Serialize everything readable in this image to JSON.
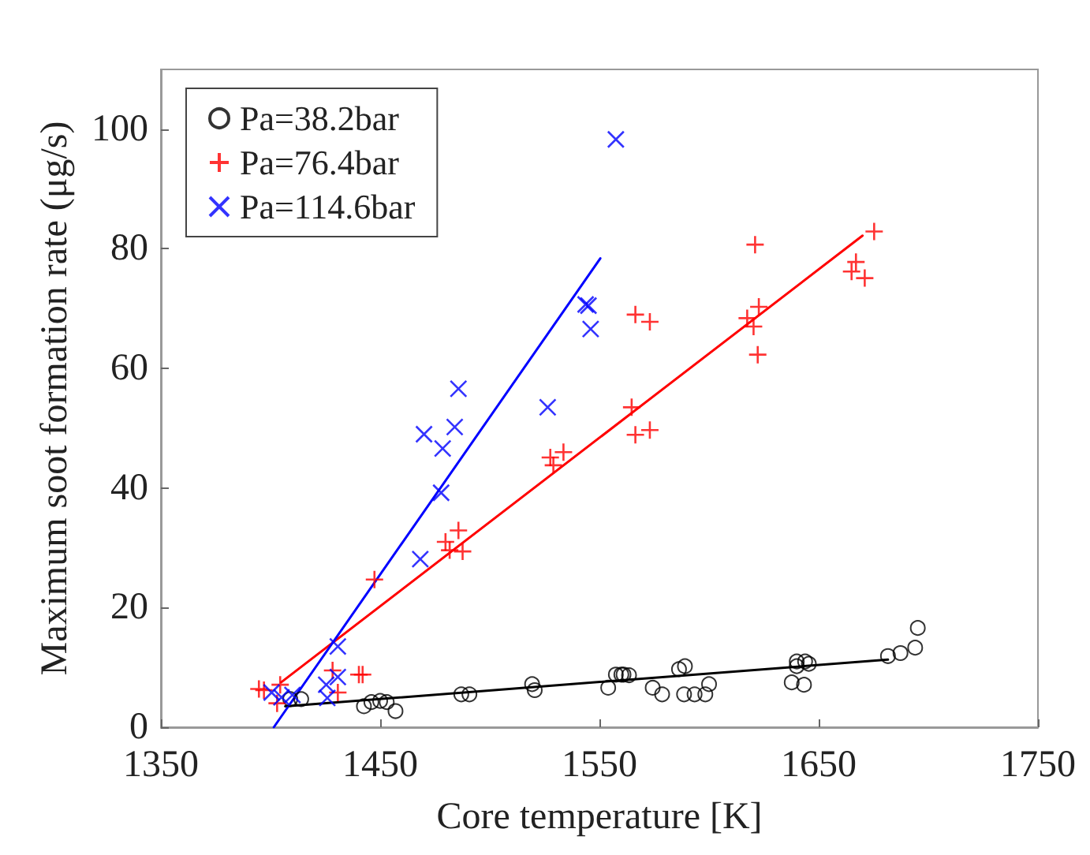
{
  "chart_data": {
    "type": "scatter",
    "xlabel": "Core temperature [K]",
    "ylabel": "Maximum soot formation rate (μg/s)",
    "xlim": [
      1350,
      1750
    ],
    "xticks": [
      1350,
      1450,
      1550,
      1650,
      1750
    ],
    "ylim": [
      0,
      110
    ],
    "yticks": [
      0,
      20,
      40,
      60,
      80,
      100
    ],
    "grid": false,
    "legend": "top left",
    "series": [
      {
        "name": "Pa=38.2bar",
        "color": "#000000",
        "marker": "circle",
        "x": [
          1409,
          1414,
          1442.6,
          1446,
          1450,
          1453,
          1457,
          1487,
          1490.7,
          1519.3,
          1520.5,
          1554,
          1557.5,
          1561,
          1560,
          1563.5,
          1574.3,
          1578.6,
          1586.3,
          1589,
          1588.6,
          1593.4,
          1598.3,
          1600,
          1637.7,
          1640,
          1643.8,
          1640,
          1645.5,
          1643.3,
          1681.6,
          1687.3,
          1694,
          1695.2
        ],
        "values": [
          4.7,
          4.7,
          3.5,
          4.2,
          4.4,
          4.2,
          2.7,
          5.5,
          5.5,
          7.2,
          6.2,
          6.6,
          8.8,
          8.8,
          8.8,
          8.7,
          6.6,
          5.5,
          9.7,
          10.2,
          5.5,
          5.5,
          5.5,
          7.2,
          7.5,
          11,
          11,
          10.2,
          10.6,
          7.1,
          11.9,
          12.4,
          13.3,
          16.6
        ]
      },
      {
        "name": "Pa=76.4bar",
        "color": "#ff0000",
        "marker": "cross",
        "x": [
          1675.3,
          1621,
          1667,
          1665,
          1671,
          1622.7,
          1617.4,
          1620.3,
          1622.2,
          1566.4,
          1573,
          1564.7,
          1566.4,
          1573,
          1527.6,
          1533.6,
          1529,
          1485.7,
          1479.8,
          1481.7,
          1487.6,
          1447.4,
          1428.3,
          1430.7,
          1440.3,
          1442,
          1394.7,
          1397,
          1404.4,
          1403
        ],
        "values": [
          82.9,
          80.7,
          77.8,
          76.2,
          75.1,
          70.3,
          68.4,
          67,
          62.3,
          69,
          67.8,
          53.5,
          48.9,
          49.7,
          45.1,
          46,
          43.8,
          32.9,
          31,
          29.6,
          29.4,
          24.7,
          9.5,
          5.8,
          8.8,
          8.8,
          6.4,
          6.2,
          7.1,
          4
        ]
      },
      {
        "name": "Pa=114.6bar",
        "color": "#0000ff",
        "marker": "x",
        "x": [
          1557.5,
          1543.7,
          1545,
          1546,
          1485.7,
          1526.4,
          1470,
          1484,
          1478.5,
          1477.8,
          1468.3,
          1430.7,
          1425.4,
          1430.7,
          1425.9,
          1400.5,
          1405,
          1410
        ],
        "values": [
          98.3,
          70.7,
          70.5,
          66.6,
          56.6,
          53.5,
          49,
          50.2,
          46.6,
          39.2,
          28.1,
          13.5,
          7.1,
          8.4,
          4.9,
          5.8,
          5,
          5.4
        ]
      },
      {
        "type": "line",
        "color": "#000000",
        "x": [
          1406.7,
          1681.6
        ],
        "values": [
          3.5,
          11.3
        ]
      },
      {
        "type": "line",
        "color": "#ff0000",
        "x": [
          1404.8,
          1670
        ],
        "values": [
          7.5,
          82.2
        ]
      },
      {
        "type": "line",
        "color": "#0000ff",
        "x": [
          1401.5,
          1550.4
        ],
        "values": [
          0,
          78.4
        ]
      }
    ]
  }
}
